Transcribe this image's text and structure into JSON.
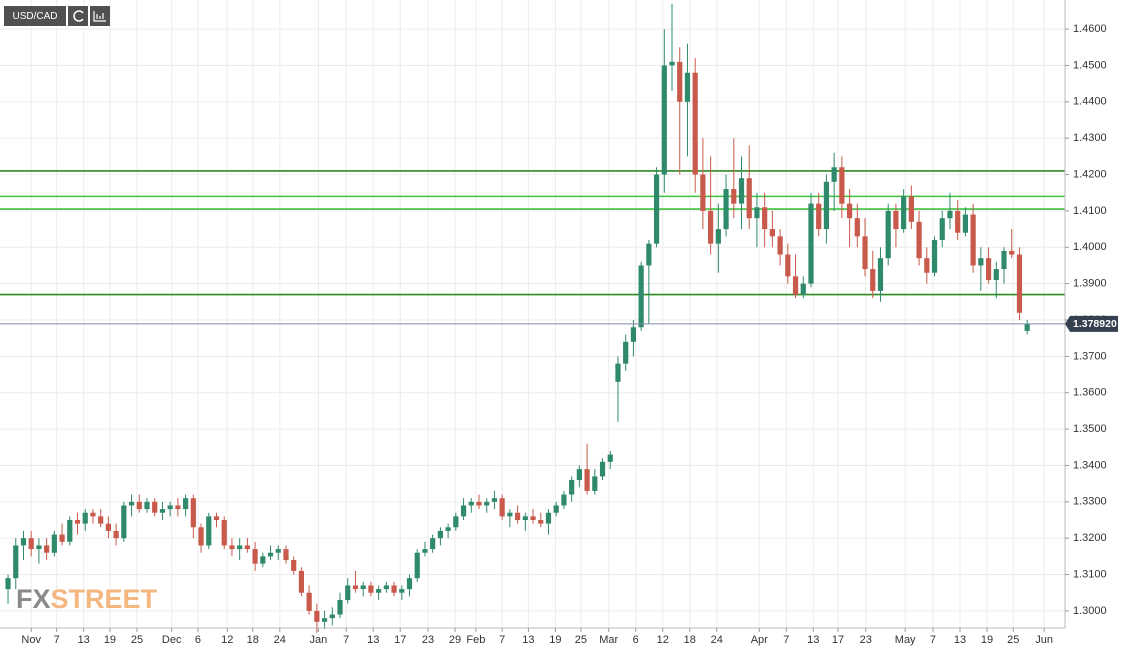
{
  "chart_data": {
    "type": "candlestick",
    "symbol": "USD/CAD",
    "watermark": [
      "FX",
      "STREET"
    ],
    "up_color": "#2f8a6c",
    "down_color": "#c9594a",
    "grid": true,
    "open": [
      1.306,
      1.309,
      1.318,
      1.32,
      1.317,
      1.318,
      1.316,
      1.321,
      1.319,
      1.325,
      1.324,
      1.327,
      1.326,
      1.324,
      1.322,
      1.32,
      1.329,
      1.33,
      1.328,
      1.33,
      1.327,
      1.328,
      1.329,
      1.328,
      1.331,
      1.323,
      1.318,
      1.326,
      1.325,
      1.318,
      1.317,
      1.318,
      1.317,
      1.313,
      1.315,
      1.316,
      1.317,
      1.314,
      1.311,
      1.305,
      1.3,
      1.297,
      1.298,
      1.299,
      1.303,
      1.307,
      1.306,
      1.307,
      1.305,
      1.306,
      1.307,
      1.305,
      1.306,
      1.309,
      1.316,
      1.317,
      1.32,
      1.322,
      1.323,
      1.326,
      1.329,
      1.33,
      1.329,
      1.33,
      1.331,
      1.326,
      1.327,
      1.325,
      1.326,
      1.325,
      1.324,
      1.327,
      1.329,
      1.332,
      1.336,
      1.339,
      1.333,
      1.337,
      1.341,
      1.363,
      1.368,
      1.374,
      1.378,
      1.395,
      1.401,
      1.42,
      1.45,
      1.451,
      1.44,
      1.448,
      1.42,
      1.41,
      1.401,
      1.405,
      1.416,
      1.412,
      1.419,
      1.408,
      1.411,
      1.405,
      1.403,
      1.398,
      1.392,
      1.387,
      1.39,
      1.412,
      1.405,
      1.418,
      1.422,
      1.412,
      1.408,
      1.403,
      1.394,
      1.388,
      1.397,
      1.41,
      1.405,
      1.414,
      1.407,
      1.397,
      1.393,
      1.402,
      1.408,
      1.41,
      1.404,
      1.409,
      1.395,
      1.397,
      1.391,
      1.394,
      1.399,
      1.398,
      1.377
    ],
    "high": [
      1.31,
      1.32,
      1.322,
      1.322,
      1.32,
      1.32,
      1.322,
      1.324,
      1.326,
      1.327,
      1.328,
      1.328,
      1.328,
      1.326,
      1.324,
      1.33,
      1.332,
      1.332,
      1.331,
      1.331,
      1.33,
      1.33,
      1.331,
      1.332,
      1.332,
      1.324,
      1.327,
      1.327,
      1.326,
      1.32,
      1.32,
      1.32,
      1.319,
      1.316,
      1.318,
      1.318,
      1.318,
      1.315,
      1.312,
      1.307,
      1.302,
      1.3,
      1.301,
      1.305,
      1.309,
      1.311,
      1.308,
      1.308,
      1.307,
      1.308,
      1.308,
      1.307,
      1.31,
      1.317,
      1.319,
      1.321,
      1.323,
      1.324,
      1.327,
      1.331,
      1.331,
      1.332,
      1.331,
      1.333,
      1.332,
      1.328,
      1.329,
      1.327,
      1.328,
      1.327,
      1.328,
      1.33,
      1.333,
      1.337,
      1.34,
      1.346,
      1.339,
      1.342,
      1.344,
      1.37,
      1.376,
      1.38,
      1.396,
      1.402,
      1.422,
      1.46,
      1.467,
      1.455,
      1.456,
      1.452,
      1.43,
      1.425,
      1.412,
      1.42,
      1.43,
      1.425,
      1.428,
      1.415,
      1.415,
      1.41,
      1.405,
      1.401,
      1.398,
      1.392,
      1.415,
      1.415,
      1.42,
      1.426,
      1.425,
      1.416,
      1.412,
      1.408,
      1.399,
      1.4,
      1.412,
      1.412,
      1.416,
      1.417,
      1.41,
      1.4,
      1.403,
      1.41,
      1.415,
      1.413,
      1.411,
      1.412,
      1.4,
      1.4,
      1.396,
      1.4,
      1.405,
      1.4,
      1.38
    ],
    "low": [
      1.302,
      1.306,
      1.314,
      1.315,
      1.313,
      1.314,
      1.315,
      1.318,
      1.318,
      1.321,
      1.322,
      1.324,
      1.323,
      1.32,
      1.318,
      1.319,
      1.326,
      1.327,
      1.327,
      1.326,
      1.325,
      1.326,
      1.326,
      1.326,
      1.32,
      1.316,
      1.317,
      1.323,
      1.317,
      1.315,
      1.314,
      1.316,
      1.311,
      1.312,
      1.314,
      1.314,
      1.313,
      1.31,
      1.304,
      1.299,
      1.294,
      1.295,
      1.296,
      1.298,
      1.302,
      1.305,
      1.304,
      1.304,
      1.303,
      1.305,
      1.304,
      1.303,
      1.304,
      1.308,
      1.315,
      1.316,
      1.318,
      1.32,
      1.322,
      1.325,
      1.327,
      1.328,
      1.327,
      1.328,
      1.325,
      1.323,
      1.324,
      1.322,
      1.324,
      1.323,
      1.321,
      1.326,
      1.328,
      1.33,
      1.334,
      1.332,
      1.332,
      1.336,
      1.339,
      1.352,
      1.366,
      1.37,
      1.377,
      1.379,
      1.4,
      1.415,
      1.443,
      1.42,
      1.425,
      1.415,
      1.405,
      1.398,
      1.393,
      1.403,
      1.408,
      1.405,
      1.405,
      1.4,
      1.4,
      1.4,
      1.395,
      1.39,
      1.386,
      1.386,
      1.389,
      1.403,
      1.401,
      1.41,
      1.408,
      1.4,
      1.4,
      1.392,
      1.386,
      1.385,
      1.395,
      1.4,
      1.404,
      1.405,
      1.395,
      1.39,
      1.392,
      1.4,
      1.405,
      1.402,
      1.403,
      1.393,
      1.388,
      1.39,
      1.386,
      1.39,
      1.397,
      1.38,
      1.376
    ],
    "close": [
      1.309,
      1.318,
      1.32,
      1.317,
      1.318,
      1.316,
      1.321,
      1.319,
      1.325,
      1.324,
      1.327,
      1.326,
      1.324,
      1.322,
      1.32,
      1.329,
      1.33,
      1.328,
      1.33,
      1.327,
      1.328,
      1.329,
      1.328,
      1.331,
      1.323,
      1.318,
      1.326,
      1.325,
      1.318,
      1.317,
      1.318,
      1.317,
      1.313,
      1.315,
      1.316,
      1.317,
      1.314,
      1.311,
      1.305,
      1.3,
      1.297,
      1.298,
      1.299,
      1.303,
      1.307,
      1.306,
      1.307,
      1.305,
      1.306,
      1.307,
      1.305,
      1.306,
      1.309,
      1.316,
      1.317,
      1.32,
      1.322,
      1.323,
      1.326,
      1.329,
      1.33,
      1.329,
      1.33,
      1.331,
      1.326,
      1.327,
      1.325,
      1.326,
      1.325,
      1.324,
      1.327,
      1.329,
      1.332,
      1.336,
      1.339,
      1.333,
      1.337,
      1.341,
      1.343,
      1.368,
      1.374,
      1.378,
      1.395,
      1.401,
      1.42,
      1.45,
      1.451,
      1.44,
      1.448,
      1.42,
      1.41,
      1.401,
      1.405,
      1.416,
      1.412,
      1.419,
      1.408,
      1.411,
      1.405,
      1.403,
      1.398,
      1.392,
      1.387,
      1.39,
      1.412,
      1.405,
      1.418,
      1.422,
      1.412,
      1.408,
      1.403,
      1.394,
      1.388,
      1.397,
      1.41,
      1.405,
      1.414,
      1.407,
      1.397,
      1.393,
      1.402,
      1.408,
      1.41,
      1.404,
      1.409,
      1.395,
      1.397,
      1.391,
      1.394,
      1.399,
      1.398,
      1.382,
      1.379
    ],
    "levels": [
      {
        "value": 1.421,
        "color": "#2e8b1e"
      },
      {
        "value": 1.414,
        "color": "#3cc23c"
      },
      {
        "value": 1.4105,
        "color": "#3cc23c"
      },
      {
        "value": 1.387,
        "color": "#2e8b1e"
      }
    ],
    "price_line": {
      "value": 1.37892,
      "label": "1.378920"
    },
    "ylim": [
      1.2953,
      1.468
    ],
    "yticks": [
      {
        "value": 1.3,
        "label": "1.3000"
      },
      {
        "value": 1.31,
        "label": "1.3100"
      },
      {
        "value": 1.32,
        "label": "1.3200"
      },
      {
        "value": 1.33,
        "label": "1.3300"
      },
      {
        "value": 1.34,
        "label": "1.3400"
      },
      {
        "value": 1.35,
        "label": "1.3500"
      },
      {
        "value": 1.36,
        "label": "1.3600"
      },
      {
        "value": 1.37,
        "label": "1.3700"
      },
      {
        "value": 1.38,
        "label": "1.3800"
      },
      {
        "value": 1.39,
        "label": "1.3900"
      },
      {
        "value": 1.4,
        "label": "1.4000"
      },
      {
        "value": 1.41,
        "label": "1.4100"
      },
      {
        "value": 1.42,
        "label": "1.4200"
      },
      {
        "value": 1.43,
        "label": "1.4300"
      },
      {
        "value": 1.44,
        "label": "1.4400"
      },
      {
        "value": 1.45,
        "label": "1.4500"
      },
      {
        "value": 1.46,
        "label": "1.4600"
      }
    ],
    "xlim": [
      -1.04,
      136.9
    ],
    "xticks": [
      {
        "value": 3.0,
        "label": "Nov"
      },
      {
        "value": 6.3,
        "label": "7"
      },
      {
        "value": 9.8,
        "label": "13"
      },
      {
        "value": 13.2,
        "label": "19"
      },
      {
        "value": 16.7,
        "label": "25"
      },
      {
        "value": 21.2,
        "label": "Dec"
      },
      {
        "value": 24.6,
        "label": "6"
      },
      {
        "value": 28.4,
        "label": "12"
      },
      {
        "value": 31.7,
        "label": "18"
      },
      {
        "value": 35.2,
        "label": "24"
      },
      {
        "value": 40.2,
        "label": "Jan"
      },
      {
        "value": 43.8,
        "label": "7"
      },
      {
        "value": 47.3,
        "label": "13"
      },
      {
        "value": 50.8,
        "label": "17"
      },
      {
        "value": 54.4,
        "label": "23"
      },
      {
        "value": 57.9,
        "label": "29"
      },
      {
        "value": 60.6,
        "label": "Feb"
      },
      {
        "value": 64.0,
        "label": "7"
      },
      {
        "value": 67.4,
        "label": "13"
      },
      {
        "value": 70.9,
        "label": "19"
      },
      {
        "value": 74.2,
        "label": "25"
      },
      {
        "value": 77.8,
        "label": "Mar"
      },
      {
        "value": 81.3,
        "label": "6"
      },
      {
        "value": 84.8,
        "label": "12"
      },
      {
        "value": 88.3,
        "label": "18"
      },
      {
        "value": 91.8,
        "label": "24"
      },
      {
        "value": 97.3,
        "label": "Apr"
      },
      {
        "value": 100.8,
        "label": "7"
      },
      {
        "value": 104.3,
        "label": "13"
      },
      {
        "value": 107.5,
        "label": "17"
      },
      {
        "value": 111.1,
        "label": "23"
      },
      {
        "value": 116.2,
        "label": "May"
      },
      {
        "value": 119.8,
        "label": "7"
      },
      {
        "value": 123.3,
        "label": "13"
      },
      {
        "value": 126.8,
        "label": "19"
      },
      {
        "value": 130.2,
        "label": "25"
      },
      {
        "value": 134.2,
        "label": "Jun"
      }
    ]
  }
}
